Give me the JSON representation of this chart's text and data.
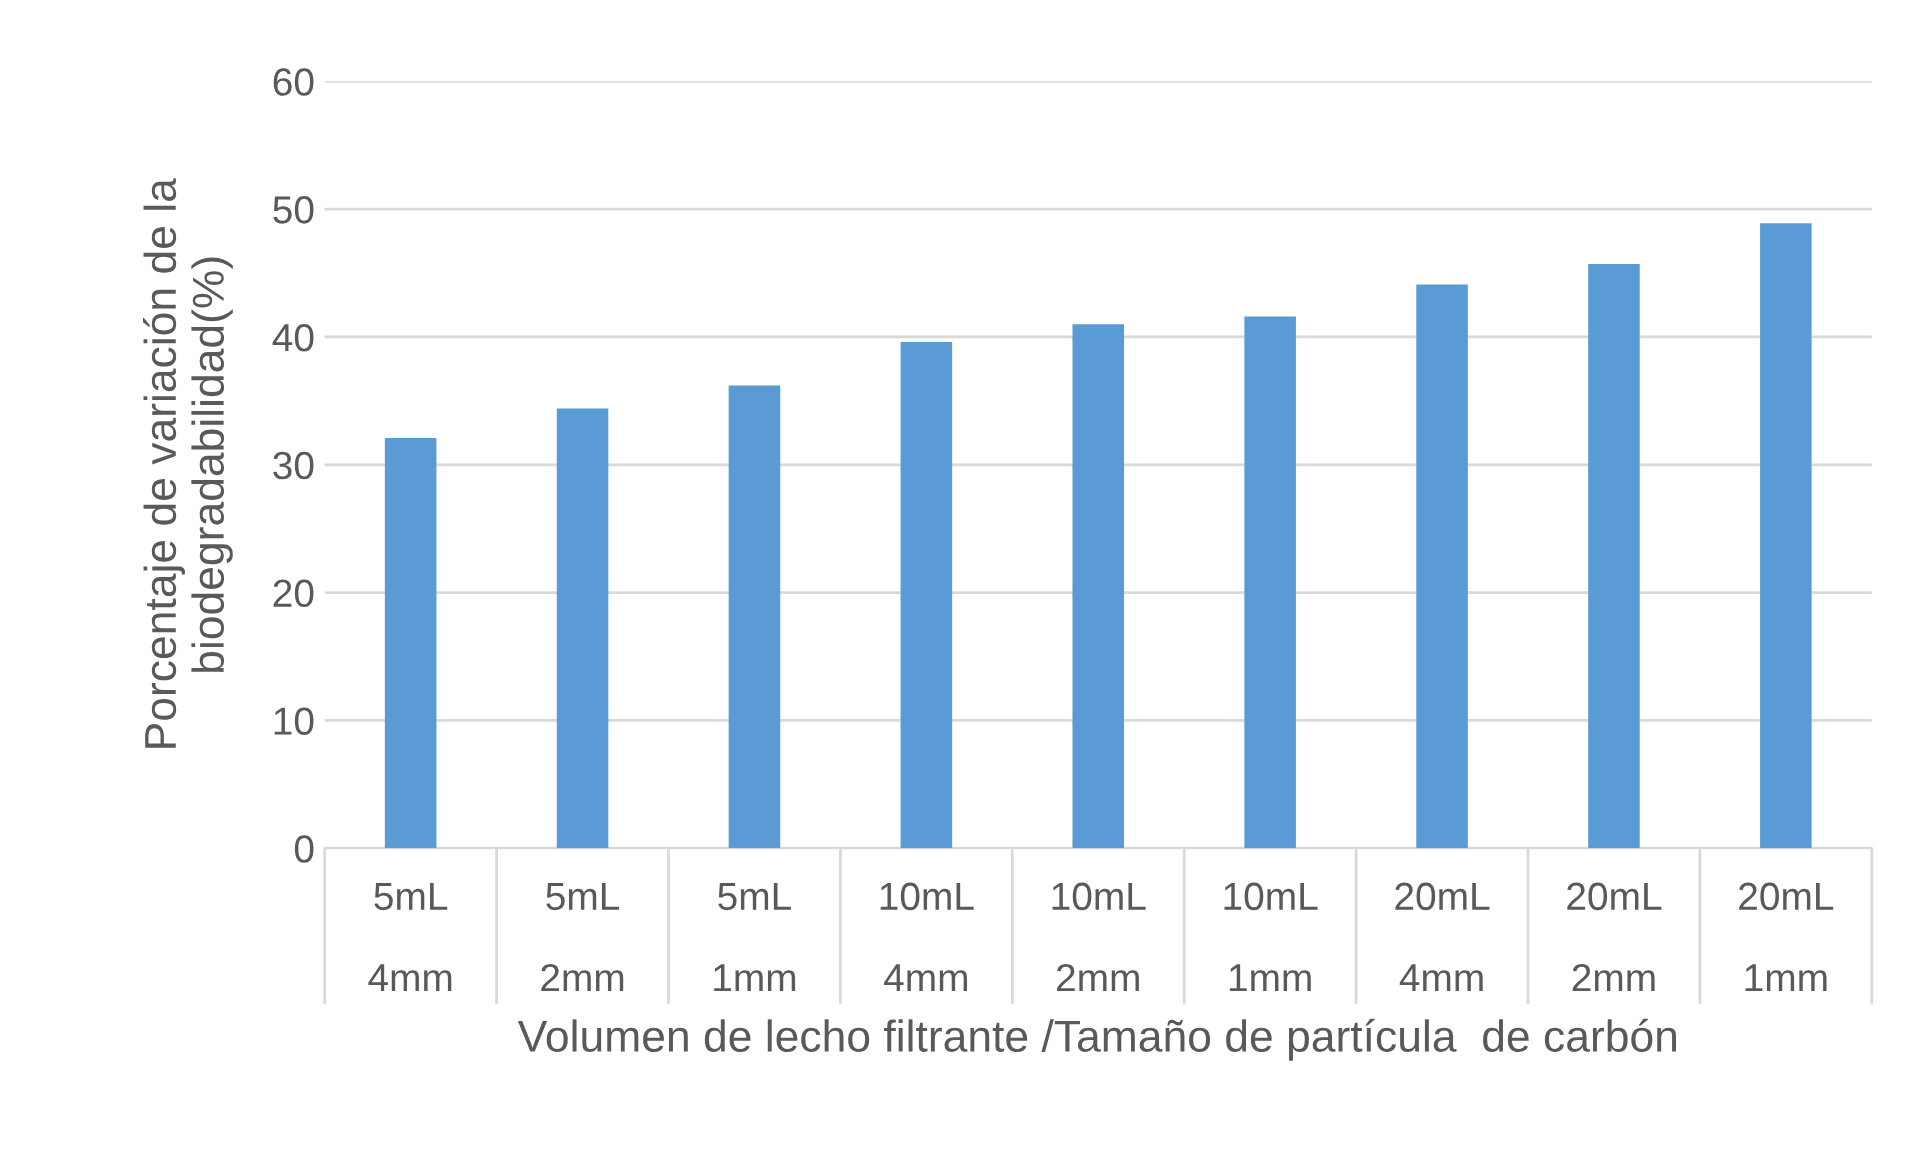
{
  "chart_data": {
    "type": "bar",
    "xlabel": "Volumen de lecho filtrante /Tamaño de partícula  de carbón",
    "ylabel": "Porcentaje de variación de la\nbiodegradabilidad(%)",
    "categories": [
      "5mL\n4mm",
      "5mL\n2mm",
      "5mL\n1mm",
      "10mL\n4mm",
      "10mL\n2mm",
      "10mL\n1mm",
      "20mL\n4mm",
      "20mL\n2mm",
      "20mL\n1mm"
    ],
    "values": [
      32.1,
      34.4,
      36.2,
      39.6,
      41.0,
      41.6,
      44.1,
      45.7,
      48.9
    ],
    "color": "#5b9bd5",
    "ylim": [
      0,
      60
    ],
    "yticks": [
      0,
      10,
      20,
      30,
      40,
      50,
      60
    ],
    "grid": "y",
    "legend": false
  }
}
